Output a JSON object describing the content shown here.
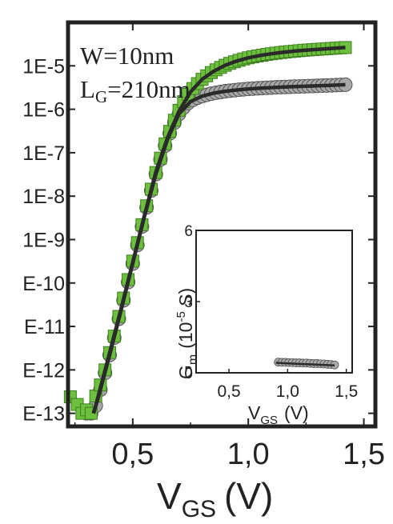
{
  "chart_data": [
    {
      "type": "scatter",
      "scale": {
        "x": "linear",
        "y": "log"
      },
      "xlabel": "V",
      "xlabel_sub": "GS",
      "xlabel_unit": "(V)",
      "xlim": [
        0.22,
        1.55
      ],
      "ylim": [
        5e-14,
        0.0001
      ],
      "xticks": [
        0.5,
        1.0,
        1.5
      ],
      "xtick_labels": [
        "0,5",
        "1,0",
        "1,5"
      ],
      "yticks": [
        1e-05,
        1e-06,
        1e-07,
        1e-08,
        1e-09,
        1e-10,
        1e-11,
        1e-12,
        1e-13
      ],
      "ytick_labels": [
        "1E-5",
        "1E-6",
        "1E-7",
        "1E-8",
        "1E-9",
        "E-10",
        "E-11",
        "E-12",
        "E-13"
      ],
      "annotation_line1": "W=10nm",
      "annotation_line2_main": "L",
      "annotation_line2_sub": "G",
      "annotation_line2_rest": "=210nm",
      "grid": false,
      "series": [
        {
          "marker": "square",
          "color": "#6dbf3e",
          "x": [
            0.23,
            0.26,
            0.28,
            0.3,
            0.32,
            0.34,
            0.36,
            0.38,
            0.4,
            0.42,
            0.44,
            0.46,
            0.48,
            0.5,
            0.52,
            0.54,
            0.56,
            0.58,
            0.6,
            0.62,
            0.64,
            0.66,
            0.68,
            0.7,
            0.72,
            0.74,
            0.76,
            0.78,
            0.8,
            0.82,
            0.84,
            0.86,
            0.88,
            0.9,
            0.92,
            0.94,
            0.96,
            0.98,
            1.0,
            1.02,
            1.04,
            1.06,
            1.08,
            1.1,
            1.12,
            1.14,
            1.16,
            1.18,
            1.2,
            1.22,
            1.24,
            1.26,
            1.28,
            1.3,
            1.32,
            1.34,
            1.36,
            1.38,
            1.4,
            1.42
          ],
          "y": [
            2.4e-13,
            1.6e-13,
            1e-13,
            1.2e-13,
            1e-13,
            2.5e-13,
            4.5e-13,
            1e-12,
            2.5e-12,
            6e-12,
            1.7e-11,
            4.5e-11,
            1.2e-10,
            3.2e-10,
            8.5e-10,
            2.2e-09,
            6e-09,
            1.45e-08,
            3.5e-08,
            7.5e-08,
            1.6e-07,
            3.1e-07,
            5.6e-07,
            9.5e-07,
            1.5e-06,
            2.2e-06,
            3e-06,
            3.9e-06,
            4.9e-06,
            5.9e-06,
            7e-06,
            8.1e-06,
            9.2e-06,
            1.03e-05,
            1.14e-05,
            1.24e-05,
            1.34e-05,
            1.44e-05,
            1.53e-05,
            1.61e-05,
            1.69e-05,
            1.76e-05,
            1.83e-05,
            1.9e-05,
            1.96e-05,
            2.02e-05,
            2.08e-05,
            2.13e-05,
            2.18e-05,
            2.23e-05,
            2.28e-05,
            2.32e-05,
            2.36e-05,
            2.4e-05,
            2.44e-05,
            2.48e-05,
            2.52e-05,
            2.56e-05,
            2.6e-05,
            2.64e-05
          ]
        },
        {
          "marker": "circle",
          "color": "#a8a8a8",
          "x": [
            0.3,
            0.32,
            0.34,
            0.36,
            0.38,
            0.4,
            0.42,
            0.44,
            0.46,
            0.48,
            0.5,
            0.52,
            0.54,
            0.56,
            0.58,
            0.6,
            0.62,
            0.64,
            0.66,
            0.68,
            0.7,
            0.72,
            0.74,
            0.76,
            0.78,
            0.8,
            0.82,
            0.84,
            0.86,
            0.88,
            0.9,
            0.92,
            0.94,
            0.96,
            0.98,
            1.0,
            1.02,
            1.04,
            1.06,
            1.08,
            1.1,
            1.12,
            1.14,
            1.16,
            1.18,
            1.2,
            1.22,
            1.24,
            1.26,
            1.28,
            1.3,
            1.32,
            1.34,
            1.36,
            1.38,
            1.4,
            1.42
          ],
          "y": [
            1e-13,
            1e-13,
            1.5e-13,
            3.5e-13,
            8.5e-13,
            2.2e-12,
            5.5e-12,
            1.5e-11,
            4e-11,
            1.05e-10,
            2.8e-10,
            7.5e-10,
            2e-09,
            5.5e-09,
            1.35e-08,
            3.2e-08,
            7e-08,
            1.45e-07,
            2.8e-07,
            4.9e-07,
            7.8e-07,
            1.1e-06,
            1.4e-06,
            1.65e-06,
            1.85e-06,
            2e-06,
            2.15e-06,
            2.28e-06,
            2.4e-06,
            2.5e-06,
            2.6e-06,
            2.68e-06,
            2.75e-06,
            2.82e-06,
            2.88e-06,
            2.94e-06,
            2.99e-06,
            3.04e-06,
            3.08e-06,
            3.12e-06,
            3.16e-06,
            3.2e-06,
            3.23e-06,
            3.26e-06,
            3.29e-06,
            3.32e-06,
            3.35e-06,
            3.38e-06,
            3.41e-06,
            3.44e-06,
            3.47e-06,
            3.5e-06,
            3.53e-06,
            3.56e-06,
            3.6e-06,
            3.64e-06,
            3.68e-06
          ]
        }
      ],
      "fits": [
        {
          "color": "#2a2a2a",
          "x": [
            0.33,
            0.35,
            0.4,
            0.45,
            0.5,
            0.55,
            0.6,
            0.65,
            0.7,
            0.75,
            0.8,
            0.85,
            0.9,
            0.95,
            1.0,
            1.05,
            1.1,
            1.15,
            1.2,
            1.25,
            1.3,
            1.35,
            1.4,
            1.42
          ],
          "y": [
            1e-13,
            2.4e-13,
            2.5e-12,
            2.6e-11,
            3e-10,
            3.5e-09,
            3.6e-08,
            2.2e-07,
            9e-07,
            2.5e-06,
            4.9e-06,
            7.5e-06,
            1.03e-05,
            1.29e-05,
            1.53e-05,
            1.73e-05,
            1.9e-05,
            2.05e-05,
            2.18e-05,
            2.3e-05,
            2.4e-05,
            2.5e-05,
            2.6e-05,
            2.64e-05
          ]
        },
        {
          "color": "#2a2a2a",
          "x": [
            0.33,
            0.35,
            0.4,
            0.45,
            0.5,
            0.55,
            0.6,
            0.65,
            0.7,
            0.75,
            0.8,
            0.85,
            0.9,
            0.95,
            1.0,
            1.05,
            1.1,
            1.15,
            1.2,
            1.25,
            1.3,
            1.35,
            1.4,
            1.42
          ],
          "y": [
            1e-13,
            2.2e-13,
            2.2e-12,
            2.4e-11,
            2.8e-10,
            3.3e-09,
            3.2e-08,
            2e-07,
            7.8e-07,
            1.5e-06,
            2e-06,
            2.35e-06,
            2.6e-06,
            2.78e-06,
            2.94e-06,
            3.06e-06,
            3.16e-06,
            3.25e-06,
            3.32e-06,
            3.4e-06,
            3.47e-06,
            3.55e-06,
            3.64e-06,
            3.68e-06
          ]
        }
      ]
    },
    {
      "type": "scatter",
      "role": "inset",
      "ylabel_main": "G",
      "ylabel_sub": "m",
      "ylabel_paren": "(10",
      "ylabel_exp": "-5",
      "ylabel_unit": " S)",
      "xlabel": "V",
      "xlabel_sub": "GS",
      "xlabel_unit": "(V)",
      "xlim": [
        0.22,
        1.55
      ],
      "ylim": [
        0,
        6
      ],
      "xticks": [
        0.5,
        1.0,
        1.5
      ],
      "xtick_labels": [
        "0,5",
        "1,0",
        "1,5"
      ],
      "yticks": [
        0,
        3,
        6
      ],
      "ytick_labels": [
        "0",
        "3",
        "6"
      ],
      "series": [
        {
          "marker": "circle",
          "color": "#a8a8a8",
          "x": [
            0.92,
            0.95,
            0.98,
            1.01,
            1.04,
            1.07,
            1.1,
            1.13,
            1.16,
            1.19,
            1.22,
            1.25,
            1.28,
            1.31,
            1.34,
            1.37,
            1.4
          ],
          "y": [
            0.45,
            0.44,
            0.44,
            0.43,
            0.43,
            0.42,
            0.42,
            0.41,
            0.41,
            0.4,
            0.39,
            0.39,
            0.38,
            0.37,
            0.36,
            0.35,
            0.33
          ]
        }
      ],
      "fit": {
        "color": "#2a2a2a",
        "x": [
          0.9,
          1.4
        ],
        "y": [
          0.42,
          0.31
        ]
      }
    }
  ]
}
